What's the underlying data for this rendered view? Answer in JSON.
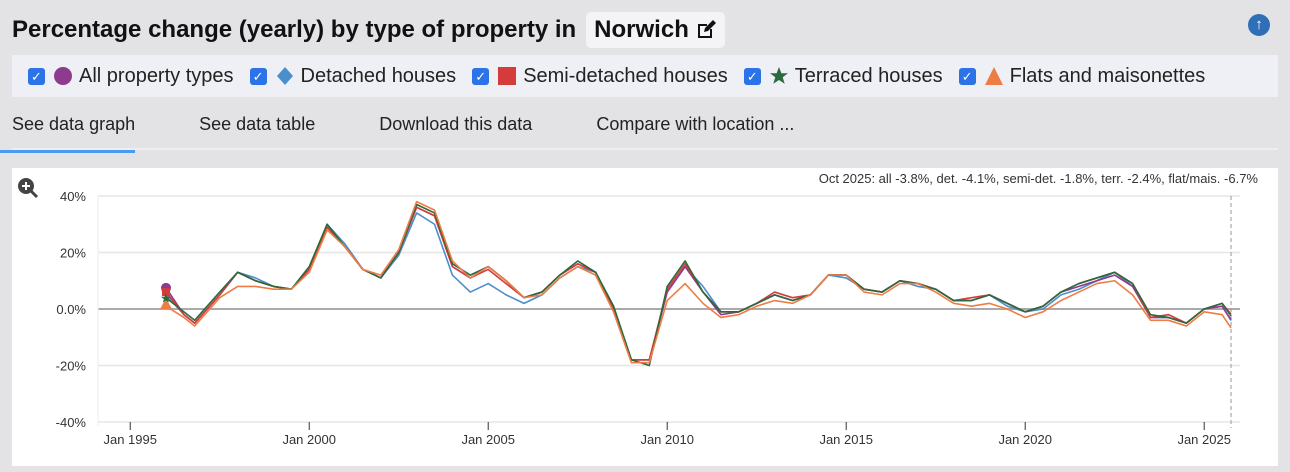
{
  "header": {
    "title": "Percentage change (yearly) by type of property in",
    "location": "Norwich",
    "edit_icon": "edit-icon",
    "up_icon": "arrow-up-icon"
  },
  "legend": [
    {
      "label": "All property types",
      "color": "#8e3a8f",
      "symbol": "circle",
      "checked": true
    },
    {
      "label": "Detached houses",
      "color": "#4a8fcc",
      "symbol": "diamond",
      "checked": true
    },
    {
      "label": "Semi-detached houses",
      "color": "#d63b3b",
      "symbol": "square",
      "checked": true
    },
    {
      "label": "Terraced houses",
      "color": "#2a6a3c",
      "symbol": "star",
      "checked": true
    },
    {
      "label": "Flats and maisonettes",
      "color": "#ee7d45",
      "symbol": "triangle",
      "checked": true
    }
  ],
  "tabs": [
    {
      "label": "See data graph",
      "active": true
    },
    {
      "label": "See data table"
    },
    {
      "label": "Download this data"
    },
    {
      "label": "Compare with location ..."
    }
  ],
  "chart_data": {
    "type": "line",
    "readout": "Oct 2025: all -3.8%, det. -4.1%, semi-det. -1.8%, terr. -2.4%, flat/mais. -6.7%",
    "ylim": [
      -40,
      40
    ],
    "yticks": [
      "40%",
      "20%",
      "0.0%",
      "-20%",
      "-40%"
    ],
    "ytick_values": [
      40,
      20,
      0,
      -20,
      -40
    ],
    "xticks": [
      "Jan 1995",
      "Jan 2000",
      "Jan 2005",
      "Jan 2010",
      "Jan 2015",
      "Jan 2020",
      "Jan 2025"
    ],
    "xtick_values": [
      1995,
      2000,
      2005,
      2010,
      2015,
      2020,
      2025
    ],
    "xlim": [
      1994.1,
      2026
    ],
    "grid": true,
    "zoom_icon": "zoom-in-icon",
    "x": [
      1996.0,
      1996.5,
      1996.8,
      1997.5,
      1998.0,
      1998.5,
      1999.0,
      1999.5,
      2000.0,
      2000.5,
      2001.0,
      2001.5,
      2002.0,
      2002.5,
      2003.0,
      2003.5,
      2004.0,
      2004.5,
      2005.0,
      2005.5,
      2006.0,
      2006.5,
      2007.0,
      2007.5,
      2008.0,
      2008.5,
      2009.0,
      2009.5,
      2010.0,
      2010.5,
      2011.0,
      2011.5,
      2012.0,
      2012.5,
      2013.0,
      2013.5,
      2014.0,
      2014.5,
      2015.0,
      2015.5,
      2016.0,
      2016.5,
      2017.0,
      2017.5,
      2018.0,
      2018.5,
      2019.0,
      2019.5,
      2020.0,
      2020.5,
      2021.0,
      2021.5,
      2022.0,
      2022.5,
      2023.0,
      2023.5,
      2024.0,
      2024.5,
      2025.0,
      2025.5,
      2025.75
    ],
    "series": [
      {
        "name": "All property types",
        "color": "#8e3a8f",
        "values": [
          7.5,
          -2,
          -5,
          5,
          13,
          10,
          8,
          7,
          14,
          29,
          22,
          14,
          11,
          20,
          36,
          33,
          15,
          11,
          15,
          10,
          4,
          6,
          12,
          16,
          13,
          0,
          -18,
          -18,
          6,
          15,
          6,
          -2,
          -1,
          2,
          5,
          3,
          5,
          12,
          12,
          7,
          6,
          10,
          9,
          7,
          3,
          3,
          5,
          2,
          -1,
          1,
          6,
          8,
          10,
          12,
          8,
          -3,
          -3,
          -5,
          0,
          1,
          -3.8
        ]
      },
      {
        "name": "Detached houses",
        "color": "#4a8fcc",
        "values": [
          5,
          -2,
          -5,
          5,
          13,
          11,
          8,
          7,
          14,
          30,
          23,
          14,
          11,
          19,
          34,
          30,
          12,
          6,
          9,
          5,
          2,
          5,
          11,
          15,
          13,
          1,
          -18,
          -18,
          6,
          15,
          8,
          -1,
          -1,
          2,
          5,
          3,
          5,
          12,
          11,
          7,
          6,
          10,
          8,
          7,
          3,
          3,
          5,
          1,
          -1,
          0,
          5,
          7,
          10,
          13,
          8,
          -3,
          -3,
          -5,
          0,
          1,
          -4.1
        ]
      },
      {
        "name": "Semi-detached houses",
        "color": "#d63b3b",
        "values": [
          6,
          -2,
          -5,
          5,
          13,
          10,
          8,
          7,
          14,
          29,
          22,
          14,
          11,
          20,
          36,
          33,
          15,
          11,
          14,
          9,
          4,
          6,
          12,
          16,
          13,
          0,
          -18,
          -18,
          7,
          16,
          6,
          -1,
          -1,
          2,
          6,
          4,
          5,
          12,
          12,
          7,
          6,
          10,
          9,
          7,
          3,
          4,
          5,
          2,
          -1,
          1,
          6,
          9,
          11,
          13,
          9,
          -3,
          -2,
          -5,
          0,
          2,
          -1.8
        ]
      },
      {
        "name": "Terraced houses",
        "color": "#2a6a3c",
        "values": [
          4,
          -1,
          -4,
          6,
          13,
          10,
          8,
          7,
          15,
          30,
          22,
          14,
          11,
          20,
          37,
          34,
          16,
          12,
          15,
          10,
          4,
          6,
          12,
          17,
          13,
          1,
          -18,
          -20,
          8,
          17,
          6,
          -1,
          -1,
          2,
          5,
          3,
          5,
          12,
          12,
          7,
          6,
          10,
          9,
          7,
          3,
          3,
          5,
          2,
          -1,
          1,
          6,
          9,
          11,
          13,
          9,
          -2,
          -3,
          -5,
          0,
          2,
          -2.4
        ]
      },
      {
        "name": "Flats and maisonettes",
        "color": "#ee7d45",
        "values": [
          1,
          -3,
          -6,
          4,
          8,
          8,
          7,
          7,
          13,
          28,
          22,
          14,
          12,
          21,
          38,
          35,
          17,
          11,
          15,
          10,
          4,
          5,
          11,
          15,
          12,
          -1,
          -19,
          -19,
          3,
          9,
          2,
          -3,
          -2,
          1,
          3,
          2,
          5,
          12,
          12,
          6,
          5,
          9,
          9,
          6,
          2,
          1,
          2,
          0,
          -3,
          -1,
          3,
          6,
          9,
          10,
          5,
          -4,
          -4,
          -6,
          -1,
          -2,
          -6.7
        ]
      }
    ]
  }
}
